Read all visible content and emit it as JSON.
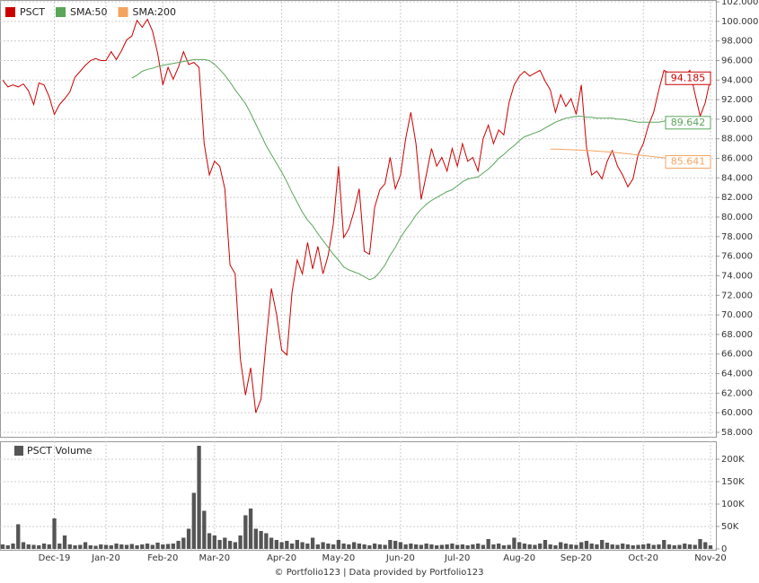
{
  "chart_data": [
    {
      "type": "line",
      "categories": [
        null,
        null,
        null,
        null,
        null,
        null,
        null,
        null,
        null,
        null,
        "Dec-19",
        null,
        null,
        null,
        null,
        null,
        null,
        null,
        null,
        null,
        "Jan-20",
        null,
        null,
        null,
        null,
        null,
        null,
        null,
        null,
        null,
        null,
        "Feb-20",
        null,
        null,
        null,
        null,
        null,
        null,
        null,
        null,
        null,
        "Mar-20",
        null,
        null,
        null,
        null,
        null,
        null,
        null,
        null,
        null,
        null,
        null,
        null,
        "Apr-20",
        null,
        null,
        null,
        null,
        null,
        null,
        null,
        null,
        null,
        null,
        "May-20",
        null,
        null,
        null,
        null,
        null,
        null,
        null,
        null,
        null,
        null,
        null,
        "Jun-20",
        null,
        null,
        null,
        null,
        null,
        null,
        null,
        null,
        null,
        null,
        "Jul-20",
        null,
        null,
        null,
        null,
        null,
        null,
        null,
        null,
        null,
        null,
        null,
        "Aug-20",
        null,
        null,
        null,
        null,
        null,
        null,
        null,
        null,
        null,
        null,
        "Sep-20",
        null,
        null,
        null,
        null,
        null,
        null,
        null,
        null,
        null,
        null,
        null,
        null,
        "Oct-20",
        null,
        null,
        null,
        null,
        null,
        null,
        null,
        null,
        null,
        null,
        null,
        null,
        "Nov-20"
      ],
      "series": [
        {
          "name": "PSCT",
          "color": "#cc0000",
          "values": [
            94.0,
            93.3,
            93.5,
            93.3,
            93.6,
            92.9,
            91.5,
            93.7,
            93.5,
            92.3,
            90.5,
            91.5,
            92.1,
            92.8,
            94.3,
            94.9,
            95.5,
            96.0,
            96.2,
            96.0,
            96.0,
            96.9,
            96.1,
            97.0,
            98.1,
            98.5,
            100.1,
            99.4,
            100.2,
            99.0,
            96.7,
            93.5,
            95.3,
            94.1,
            95.3,
            96.9,
            95.6,
            95.8,
            95.3,
            87.5,
            84.3,
            85.7,
            85.2,
            82.9,
            75.1,
            74.2,
            65.5,
            61.8,
            64.6,
            60.0,
            61.4,
            67.3,
            72.7,
            70.1,
            66.4,
            65.9,
            72.3,
            75.6,
            74.2,
            77.4,
            74.7,
            77.0,
            74.2,
            76.1,
            79.3,
            85.2,
            77.9,
            78.8,
            80.6,
            82.9,
            76.5,
            76.2,
            81.0,
            82.8,
            83.4,
            86.1,
            82.9,
            84.3,
            88.0,
            90.7,
            87.5,
            81.8,
            84.3,
            87.0,
            85.2,
            86.1,
            84.7,
            87.0,
            85.2,
            87.5,
            85.7,
            86.1,
            84.7,
            88.0,
            89.4,
            87.5,
            88.9,
            88.4,
            91.7,
            93.5,
            94.4,
            94.9,
            94.4,
            94.7,
            95.0,
            93.9,
            93.0,
            90.7,
            92.5,
            91.3,
            92.1,
            90.5,
            93.5,
            87.1,
            84.3,
            84.7,
            83.9,
            85.7,
            86.8,
            85.2,
            84.3,
            83.1,
            83.9,
            86.4,
            87.5,
            89.4,
            90.7,
            93.0,
            95.0,
            94.7,
            94.4,
            94.5,
            94.4,
            95.0,
            92.6,
            90.3,
            91.7,
            94.185
          ]
        },
        {
          "name": "SMA:50",
          "color": "#5aa55a",
          "values": [
            null,
            null,
            null,
            null,
            null,
            null,
            null,
            null,
            null,
            null,
            null,
            null,
            null,
            null,
            null,
            null,
            null,
            null,
            null,
            null,
            null,
            null,
            null,
            null,
            null,
            94.2,
            94.5,
            94.9,
            95.1,
            95.2,
            95.4,
            95.5,
            95.6,
            95.7,
            95.8,
            95.9,
            96.0,
            96.1,
            96.1,
            96.1,
            96.0,
            95.6,
            95.1,
            94.5,
            93.8,
            93.0,
            92.3,
            91.6,
            90.6,
            89.5,
            88.4,
            87.3,
            86.4,
            85.5,
            84.6,
            83.6,
            82.5,
            81.5,
            80.5,
            79.7,
            79.1,
            78.3,
            77.6,
            76.9,
            76.2,
            75.6,
            74.9,
            74.6,
            74.4,
            74.2,
            73.9,
            73.6,
            73.8,
            74.4,
            75.1,
            76.1,
            76.9,
            77.9,
            78.7,
            79.4,
            80.2,
            80.8,
            81.3,
            81.7,
            82.0,
            82.3,
            82.6,
            82.8,
            83.2,
            83.6,
            83.9,
            84.0,
            84.1,
            84.5,
            84.9,
            85.4,
            86.0,
            86.4,
            86.9,
            87.3,
            87.8,
            88.2,
            88.4,
            88.6,
            88.8,
            89.1,
            89.4,
            89.7,
            89.9,
            90.1,
            90.2,
            90.3,
            90.3,
            90.2,
            90.2,
            90.1,
            90.1,
            90.1,
            90.1,
            90.0,
            90.0,
            89.9,
            89.8,
            89.7,
            89.7,
            89.7,
            89.7,
            89.7,
            89.8,
            89.9,
            90.0,
            90.1,
            90.1,
            90.0,
            90.0,
            89.9,
            89.8,
            89.642
          ]
        },
        {
          "name": "SMA:200",
          "color": "#f4a460",
          "values": [
            null,
            null,
            null,
            null,
            null,
            null,
            null,
            null,
            null,
            null,
            null,
            null,
            null,
            null,
            null,
            null,
            null,
            null,
            null,
            null,
            null,
            null,
            null,
            null,
            null,
            null,
            null,
            null,
            null,
            null,
            null,
            null,
            null,
            null,
            null,
            null,
            null,
            null,
            null,
            null,
            null,
            null,
            null,
            null,
            null,
            null,
            null,
            null,
            null,
            null,
            null,
            null,
            null,
            null,
            null,
            null,
            null,
            null,
            null,
            null,
            null,
            null,
            null,
            null,
            null,
            null,
            null,
            null,
            null,
            null,
            null,
            null,
            null,
            null,
            null,
            null,
            null,
            null,
            null,
            null,
            null,
            null,
            null,
            null,
            null,
            null,
            null,
            null,
            null,
            null,
            null,
            null,
            null,
            null,
            null,
            null,
            null,
            null,
            null,
            null,
            null,
            null,
            null,
            null,
            null,
            null,
            86.95,
            86.94,
            86.92,
            86.9,
            86.88,
            86.86,
            86.84,
            86.81,
            86.78,
            86.74,
            86.7,
            86.66,
            86.62,
            86.57,
            86.52,
            86.47,
            86.41,
            86.35,
            86.29,
            86.23,
            86.17,
            86.11,
            86.05,
            85.99,
            85.93,
            85.88,
            85.83,
            85.78,
            85.74,
            85.7,
            85.67,
            85.641
          ]
        }
      ],
      "ylim": [
        58,
        102
      ],
      "yticks": [
        {
          "value": 58,
          "label": "58.000"
        },
        {
          "value": 60,
          "label": "60.000"
        },
        {
          "value": 62,
          "label": "62.000"
        },
        {
          "value": 64,
          "label": "64.000"
        },
        {
          "value": 66,
          "label": "66.000"
        },
        {
          "value": 68,
          "label": "68.000"
        },
        {
          "value": 70,
          "label": "70.000"
        },
        {
          "value": 72,
          "label": "72.000"
        },
        {
          "value": 74,
          "label": "74.000"
        },
        {
          "value": 76,
          "label": "76.000"
        },
        {
          "value": 78,
          "label": "78.000"
        },
        {
          "value": 80,
          "label": "80.000"
        },
        {
          "value": 82,
          "label": "82.000"
        },
        {
          "value": 84,
          "label": "84.000"
        },
        {
          "value": 86,
          "label": "86.000"
        },
        {
          "value": 88,
          "label": "88.000"
        },
        {
          "value": 90,
          "label": "90.000"
        },
        {
          "value": 92,
          "label": "92.000"
        },
        {
          "value": 94,
          "label": "94.000"
        },
        {
          "value": 96,
          "label": "96.000"
        },
        {
          "value": 98,
          "label": "98.000"
        },
        {
          "value": 100,
          "label": "100.000"
        },
        {
          "value": 102,
          "label": "102.000"
        }
      ],
      "grid": true,
      "source": "© Portfolio123 | Data provided by Portfolio123"
    },
    {
      "type": "bar",
      "series": [
        {
          "name": "PSCT Volume",
          "color": "#555555",
          "values": [
            10000,
            8000,
            12000,
            55000,
            15000,
            10000,
            9000,
            8000,
            12000,
            10000,
            68000,
            12000,
            30000,
            10000,
            8000,
            9000,
            15000,
            8000,
            7000,
            10000,
            9000,
            8000,
            12000,
            10000,
            9000,
            11000,
            8000,
            10000,
            12000,
            9000,
            14000,
            10000,
            11000,
            12000,
            18000,
            25000,
            45000,
            125000,
            230000,
            85000,
            35000,
            30000,
            20000,
            25000,
            18000,
            15000,
            30000,
            75000,
            90000,
            45000,
            40000,
            35000,
            25000,
            20000,
            15000,
            18000,
            12000,
            20000,
            15000,
            12000,
            25000,
            10000,
            15000,
            12000,
            10000,
            20000,
            12000,
            10000,
            15000,
            12000,
            10000,
            8000,
            12000,
            10000,
            9000,
            20000,
            18000,
            15000,
            10000,
            12000,
            10000,
            9000,
            12000,
            10000,
            8000,
            9000,
            10000,
            12000,
            9000,
            10000,
            8000,
            10000,
            12000,
            9000,
            22000,
            10000,
            12000,
            8000,
            9000,
            25000,
            15000,
            12000,
            10000,
            9000,
            12000,
            20000,
            10000,
            8000,
            15000,
            12000,
            10000,
            9000,
            15000,
            18000,
            12000,
            10000,
            20000,
            14000,
            10000,
            9000,
            12000,
            10000,
            8000,
            9000,
            10000,
            12000,
            9000,
            10000,
            20000,
            10000,
            8000,
            9000,
            12000,
            10000,
            9000,
            22000,
            15000,
            8000
          ]
        }
      ],
      "ylim": [
        0,
        240000
      ],
      "yticks": [
        {
          "value": 0,
          "label": "0"
        },
        {
          "value": 50000,
          "label": "50K"
        },
        {
          "value": 100000,
          "label": "100K"
        },
        {
          "value": 150000,
          "label": "150K"
        },
        {
          "value": 200000,
          "label": "200K"
        }
      ],
      "grid": true
    }
  ]
}
